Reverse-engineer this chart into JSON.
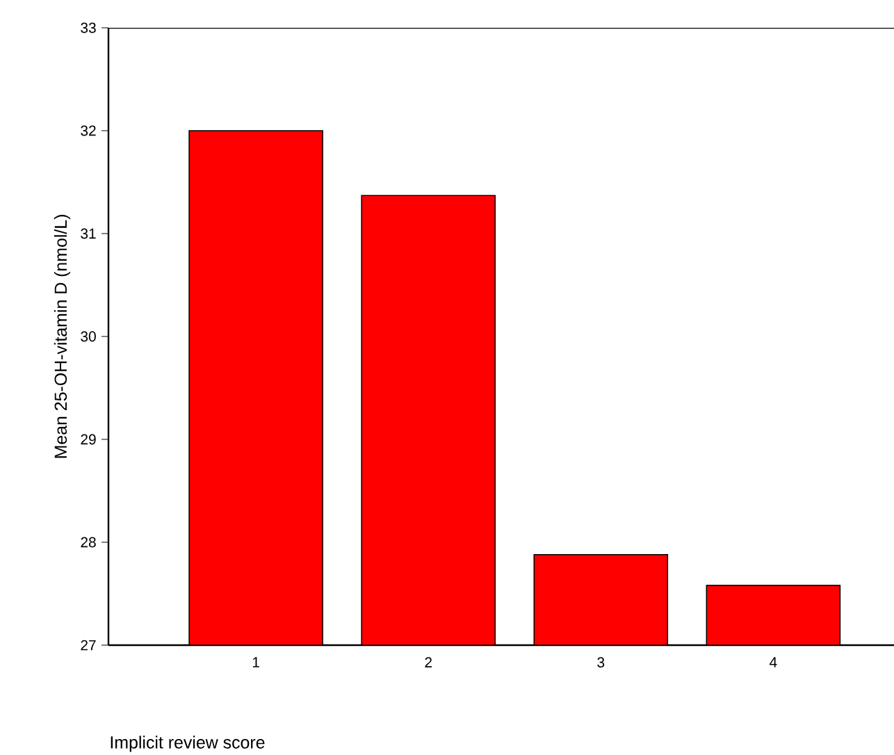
{
  "chart_data": {
    "type": "bar",
    "categories": [
      "1",
      "2",
      "3",
      "4"
    ],
    "values": [
      32.0,
      31.37,
      27.88,
      27.58
    ],
    "color": "#ff0000",
    "xlabel": "Implicit review score",
    "ylabel": "Mean 25-OH-vitamin D (nmol/L)",
    "ylim": [
      27,
      33
    ],
    "yticks": [
      27,
      28,
      29,
      30,
      31,
      32,
      33
    ]
  }
}
